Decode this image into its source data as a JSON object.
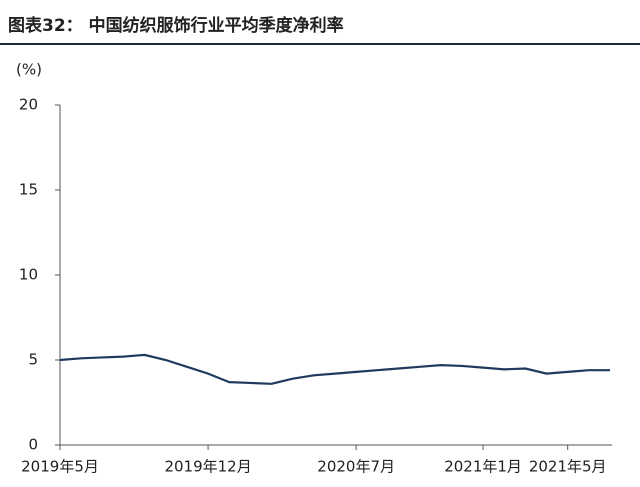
{
  "chart_data": {
    "type": "line",
    "title": "图表32：  中国纺织服饰行业平均季度净利率",
    "y_label": "(%)",
    "categories": [
      "2019年5月",
      null,
      null,
      null,
      null,
      null,
      null,
      "2019年12月",
      null,
      null,
      null,
      null,
      null,
      null,
      "2020年7月",
      null,
      null,
      null,
      null,
      null,
      "2021年1月",
      null,
      null,
      null,
      "2021年5月",
      null,
      null
    ],
    "series": [
      {
        "name": "净利率",
        "color": "#1f3a5f",
        "values": [
          5.0,
          5.1,
          5.15,
          5.2,
          5.3,
          5.0,
          4.6,
          4.2,
          3.7,
          3.65,
          3.6,
          3.9,
          4.1,
          4.2,
          4.3,
          4.4,
          4.5,
          4.6,
          4.7,
          4.65,
          4.55,
          4.45,
          4.5,
          4.2,
          4.3,
          4.4,
          4.4
        ]
      }
    ],
    "ylim": [
      0,
      20
    ],
    "yticks": [
      0,
      5,
      10,
      15,
      20
    ],
    "grid": false
  }
}
